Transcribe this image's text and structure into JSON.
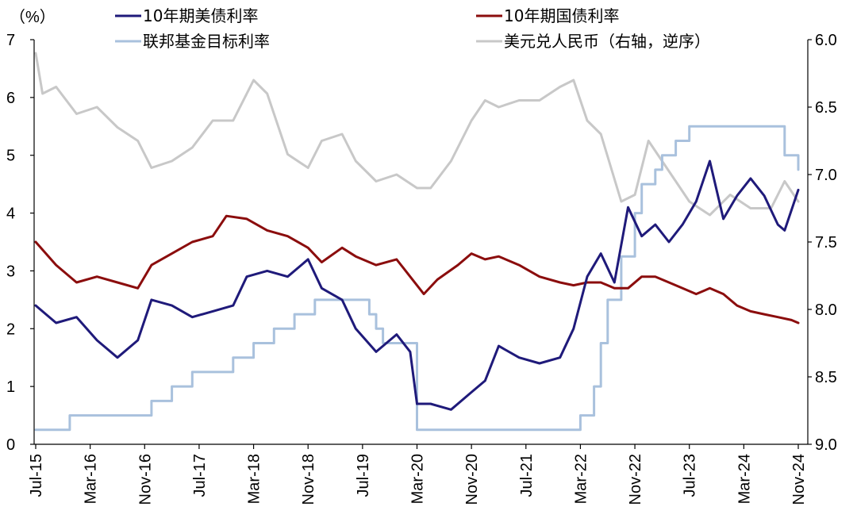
{
  "chart_data": {
    "type": "line",
    "left_axis_unit": "（%）",
    "left_axis": {
      "range": [
        0,
        7
      ],
      "ticks": [
        "0",
        "1",
        "2",
        "3",
        "4",
        "5",
        "6",
        "7"
      ]
    },
    "right_axis": {
      "range": [
        6.0,
        9.0
      ],
      "reversed": true,
      "ticks": [
        "6.0",
        "6.5",
        "7.0",
        "7.5",
        "8.0",
        "8.5",
        "9.0"
      ]
    },
    "x_ticks": [
      "Jul-15",
      "Mar-16",
      "Nov-16",
      "Jul-17",
      "Mar-18",
      "Nov-18",
      "Jul-19",
      "Mar-20",
      "Nov-20",
      "Jul-21",
      "Mar-22",
      "Nov-22",
      "Jul-23",
      "Mar-24",
      "Nov-24"
    ],
    "x_range": [
      "2015-07",
      "2024-11"
    ],
    "grid": false,
    "legend": [
      {
        "label": "10年期美债利率",
        "color": "#1f1a7a"
      },
      {
        "label": "10年期国债利率",
        "color": "#8b0d0d"
      },
      {
        "label": "联邦基金目标利率",
        "color": "#a9c1dd"
      },
      {
        "label": "美元兑人民币（右轴，逆序）",
        "color": "#c8c8c8"
      }
    ],
    "series": [
      {
        "name": "10年期美债利率",
        "axis": "left",
        "color": "#1f1a7a",
        "x": [
          "2015-07",
          "2015-10",
          "2016-01",
          "2016-04",
          "2016-07",
          "2016-10",
          "2016-12",
          "2017-03",
          "2017-06",
          "2017-09",
          "2017-12",
          "2018-02",
          "2018-05",
          "2018-08",
          "2018-11",
          "2019-01",
          "2019-04",
          "2019-06",
          "2019-09",
          "2019-12",
          "2020-02",
          "2020-03",
          "2020-05",
          "2020-08",
          "2020-11",
          "2021-01",
          "2021-03",
          "2021-06",
          "2021-09",
          "2021-12",
          "2022-02",
          "2022-04",
          "2022-06",
          "2022-08",
          "2022-10",
          "2022-12",
          "2023-02",
          "2023-04",
          "2023-06",
          "2023-08",
          "2023-10",
          "2023-12",
          "2024-02",
          "2024-04",
          "2024-06",
          "2024-08",
          "2024-09",
          "2024-11"
        ],
        "values": [
          2.4,
          2.1,
          2.2,
          1.8,
          1.5,
          1.8,
          2.5,
          2.4,
          2.2,
          2.3,
          2.4,
          2.9,
          3.0,
          2.9,
          3.2,
          2.7,
          2.5,
          2.0,
          1.6,
          1.9,
          1.6,
          0.7,
          0.7,
          0.6,
          0.9,
          1.1,
          1.7,
          1.5,
          1.4,
          1.5,
          2.0,
          2.9,
          3.3,
          2.8,
          4.1,
          3.6,
          3.8,
          3.5,
          3.8,
          4.2,
          4.9,
          3.9,
          4.3,
          4.6,
          4.3,
          3.8,
          3.7,
          4.4
        ]
      },
      {
        "name": "10年期国债利率",
        "axis": "left",
        "color": "#8b0d0d",
        "x": [
          "2015-07",
          "2015-10",
          "2016-01",
          "2016-04",
          "2016-07",
          "2016-10",
          "2016-12",
          "2017-03",
          "2017-06",
          "2017-09",
          "2017-11",
          "2018-02",
          "2018-05",
          "2018-08",
          "2018-11",
          "2019-01",
          "2019-04",
          "2019-06",
          "2019-09",
          "2019-12",
          "2020-02",
          "2020-04",
          "2020-06",
          "2020-09",
          "2020-11",
          "2021-01",
          "2021-03",
          "2021-06",
          "2021-09",
          "2021-12",
          "2022-02",
          "2022-04",
          "2022-06",
          "2022-08",
          "2022-10",
          "2022-12",
          "2023-02",
          "2023-04",
          "2023-06",
          "2023-08",
          "2023-10",
          "2023-12",
          "2024-02",
          "2024-04",
          "2024-06",
          "2024-08",
          "2024-10",
          "2024-11"
        ],
        "values": [
          3.5,
          3.1,
          2.8,
          2.9,
          2.8,
          2.7,
          3.1,
          3.3,
          3.5,
          3.6,
          3.95,
          3.9,
          3.7,
          3.6,
          3.4,
          3.15,
          3.4,
          3.25,
          3.1,
          3.2,
          2.9,
          2.6,
          2.85,
          3.1,
          3.3,
          3.2,
          3.25,
          3.1,
          2.9,
          2.8,
          2.75,
          2.8,
          2.8,
          2.7,
          2.7,
          2.9,
          2.9,
          2.8,
          2.7,
          2.6,
          2.7,
          2.6,
          2.4,
          2.3,
          2.25,
          2.2,
          2.15,
          2.1
        ]
      },
      {
        "name": "联邦基金目标利率",
        "axis": "left",
        "color": "#a9c1dd",
        "step": true,
        "x": [
          "2015-07",
          "2015-12",
          "2016-12",
          "2017-03",
          "2017-06",
          "2017-12",
          "2018-03",
          "2018-06",
          "2018-09",
          "2018-12",
          "2019-08",
          "2019-09",
          "2019-10",
          "2020-03",
          "2022-03",
          "2022-05",
          "2022-06",
          "2022-07",
          "2022-09",
          "2022-11",
          "2022-12",
          "2023-02",
          "2023-03",
          "2023-05",
          "2023-07",
          "2024-09",
          "2024-11"
        ],
        "values": [
          0.25,
          0.5,
          0.75,
          1.0,
          1.25,
          1.5,
          1.75,
          2.0,
          2.25,
          2.5,
          2.25,
          2.0,
          1.75,
          0.25,
          0.5,
          1.0,
          1.75,
          2.5,
          3.25,
          4.0,
          4.5,
          4.75,
          5.0,
          5.25,
          5.5,
          5.0,
          4.75
        ]
      },
      {
        "name": "美元兑人民币（右轴，逆序）",
        "axis": "right",
        "color": "#c8c8c8",
        "x": [
          "2015-07",
          "2015-08",
          "2015-10",
          "2016-01",
          "2016-04",
          "2016-07",
          "2016-10",
          "2016-12",
          "2017-03",
          "2017-06",
          "2017-09",
          "2017-12",
          "2018-03",
          "2018-05",
          "2018-08",
          "2018-11",
          "2019-01",
          "2019-04",
          "2019-06",
          "2019-09",
          "2019-12",
          "2020-03",
          "2020-05",
          "2020-08",
          "2020-11",
          "2021-01",
          "2021-03",
          "2021-06",
          "2021-09",
          "2021-12",
          "2022-02",
          "2022-04",
          "2022-06",
          "2022-09",
          "2022-11",
          "2023-01",
          "2023-03",
          "2023-05",
          "2023-07",
          "2023-10",
          "2024-01",
          "2024-04",
          "2024-07",
          "2024-09",
          "2024-11"
        ],
        "values": [
          6.1,
          6.4,
          6.35,
          6.55,
          6.5,
          6.65,
          6.75,
          6.95,
          6.9,
          6.8,
          6.6,
          6.6,
          6.3,
          6.4,
          6.85,
          6.95,
          6.75,
          6.7,
          6.9,
          7.05,
          7.0,
          7.1,
          7.1,
          6.9,
          6.6,
          6.45,
          6.5,
          6.45,
          6.45,
          6.35,
          6.3,
          6.6,
          6.7,
          7.2,
          7.15,
          6.75,
          6.9,
          7.05,
          7.2,
          7.3,
          7.15,
          7.25,
          7.25,
          7.05,
          7.2
        ]
      }
    ]
  }
}
